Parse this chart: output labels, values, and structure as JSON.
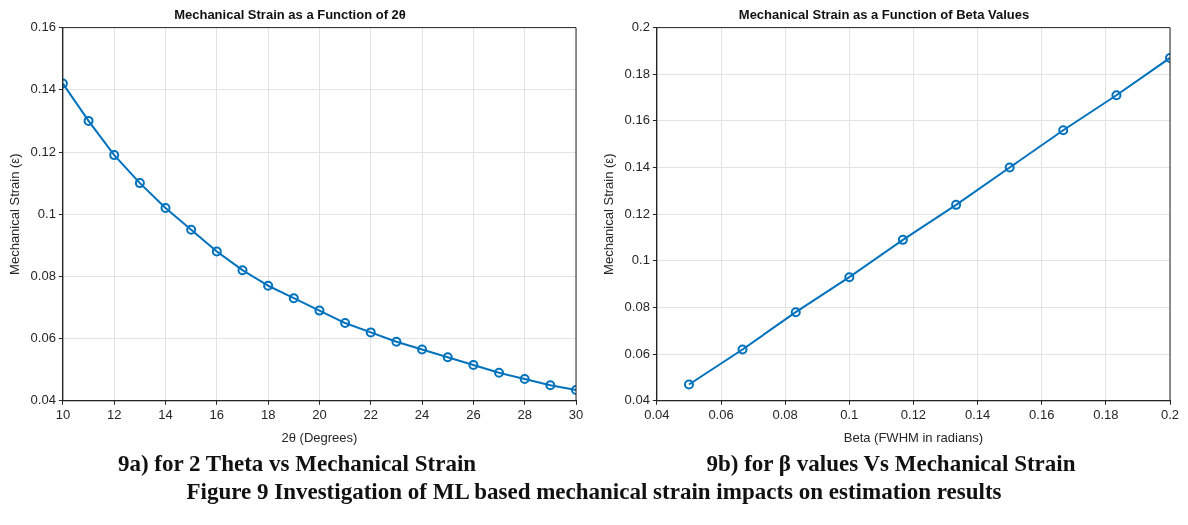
{
  "chart_data": [
    {
      "type": "line",
      "title": "Mechanical Strain as a Function of 2θ",
      "xlabel": "2θ (Degrees)",
      "ylabel": "Mechanical Strain (ε)",
      "x": [
        10,
        11,
        12,
        13,
        14,
        15,
        16,
        17,
        18,
        19,
        20,
        21,
        22,
        23,
        24,
        25,
        26,
        27,
        28,
        29,
        30
      ],
      "series": [
        {
          "color": "#0072bd",
          "values": [
            0.142,
            0.13,
            0.119,
            0.11,
            0.102,
            0.095,
            0.088,
            0.082,
            0.077,
            0.073,
            0.069,
            0.065,
            0.062,
            0.059,
            0.0565,
            0.054,
            0.0515,
            0.049,
            0.047,
            0.045,
            0.0435
          ]
        }
      ],
      "xlim": [
        10,
        30
      ],
      "xticks": [
        10,
        12,
        14,
        16,
        18,
        20,
        22,
        24,
        26,
        28,
        30
      ],
      "ylim": [
        0.04,
        0.16
      ],
      "yticks": [
        0.04,
        0.06,
        0.08,
        0.1,
        0.12,
        0.14,
        0.16
      ],
      "grid": true,
      "legend": false,
      "marker": "circle",
      "line_style": "solid",
      "annotations": [
        "9a)  for 2 Theta  vs Mechanical Strain",
        "Figure 9 Investigation of ML based mechanical strain impacts on estimation results"
      ]
    },
    {
      "type": "line",
      "title": "Mechanical Strain as a Function of Beta Values",
      "xlabel": "Beta (FWHM in radians)",
      "ylabel": "Mechanical Strain (ε)",
      "x": [
        0.05,
        0.0667,
        0.0833,
        0.1,
        0.1167,
        0.1333,
        0.15,
        0.1667,
        0.1833,
        0.2
      ],
      "series": [
        {
          "color": "#0072bd",
          "values": [
            0.047,
            0.062,
            0.078,
            0.093,
            0.109,
            0.124,
            0.14,
            0.156,
            0.171,
            0.187
          ]
        }
      ],
      "xlim": [
        0.04,
        0.2
      ],
      "xticks": [
        0.04,
        0.06,
        0.08,
        0.1,
        0.12,
        0.14,
        0.16,
        0.18,
        0.2
      ],
      "ylim": [
        0.04,
        0.2
      ],
      "yticks": [
        0.04,
        0.06,
        0.08,
        0.1,
        0.12,
        0.14,
        0.16,
        0.18,
        0.2
      ],
      "grid": true,
      "legend": false,
      "marker": "circle",
      "line_style": "solid",
      "annotations": [
        "9b) for β values Vs Mechanical Strain"
      ]
    }
  ]
}
